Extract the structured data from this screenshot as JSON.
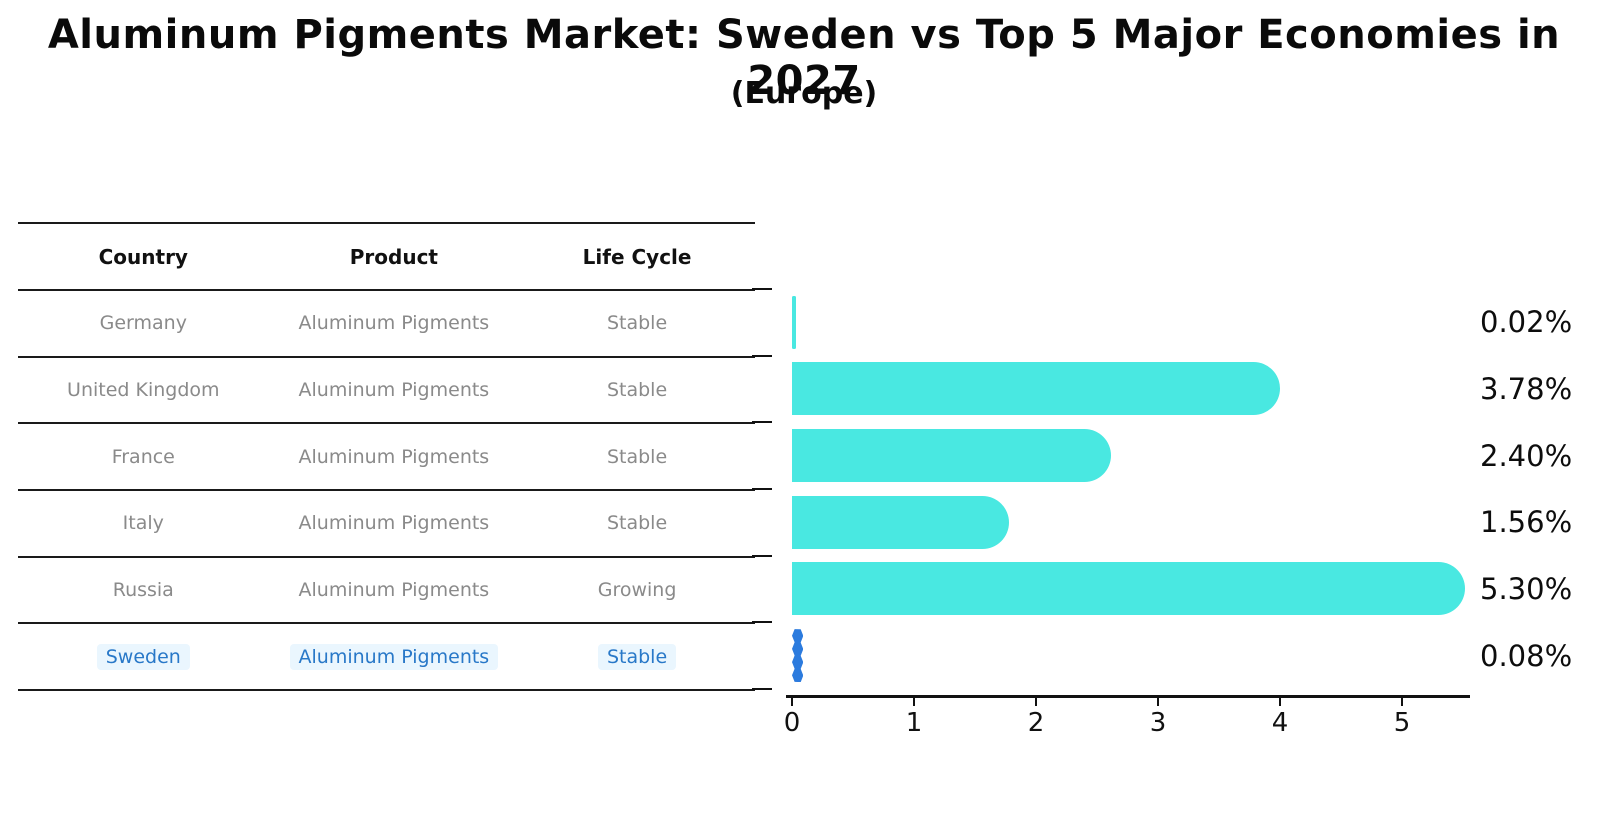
{
  "title": "Aluminum Pigments Market: Sweden vs Top 5 Major Economies in 2027",
  "subtitle": "(Europe)",
  "table": {
    "headers": [
      "Country",
      "Product",
      "Life Cycle"
    ],
    "rows": [
      {
        "country": "Germany",
        "product": "Aluminum Pigments",
        "life_cycle": "Stable",
        "highlight": false
      },
      {
        "country": "United Kingdom",
        "product": "Aluminum Pigments",
        "life_cycle": "Stable",
        "highlight": false
      },
      {
        "country": "France",
        "product": "Aluminum Pigments",
        "life_cycle": "Stable",
        "highlight": false
      },
      {
        "country": "Italy",
        "product": "Aluminum Pigments",
        "life_cycle": "Stable",
        "highlight": false
      },
      {
        "country": "Russia",
        "product": "Aluminum Pigments",
        "life_cycle": "Growing",
        "highlight": false
      },
      {
        "country": "Sweden",
        "product": "Aluminum Pigments",
        "life_cycle": "Stable",
        "highlight": true
      }
    ]
  },
  "chart_data": {
    "type": "bar",
    "orientation": "horizontal",
    "title": "Aluminum Pigments Market: Sweden vs Top 5 Major Economies in 2027",
    "subtitle": "(Europe)",
    "categories": [
      "Germany",
      "United Kingdom",
      "France",
      "Italy",
      "Russia",
      "Sweden"
    ],
    "values": [
      0.02,
      3.78,
      2.4,
      1.56,
      5.3,
      0.08
    ],
    "value_labels": [
      "0.02%",
      "3.78%",
      "2.40%",
      "1.56%",
      "5.30%",
      "0.08%"
    ],
    "x_ticks": [
      "0",
      "1",
      "2",
      "3",
      "4",
      "5"
    ],
    "xlim": [
      0,
      5.56
    ],
    "grid": false,
    "legend": false,
    "bar_color": "#49E8E1",
    "highlight_bar_color": "#2C7BDE",
    "highlight_index": 5
  },
  "colors": {
    "background": "#ffffff",
    "table_rule": "#1a1a1a",
    "table_header_text": "#111111",
    "table_body_text": "#8a8a8a",
    "highlight_text": "#2878C8",
    "highlight_row_bg": "#EAF6FE",
    "axis": "#111111",
    "value_label": "#0d0d0d"
  }
}
